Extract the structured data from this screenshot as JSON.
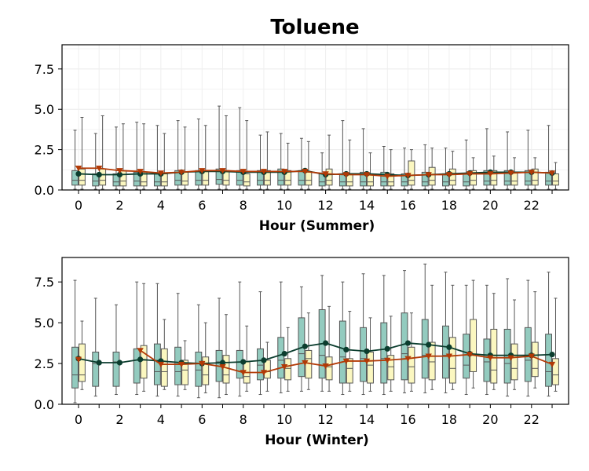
{
  "chart_title": "Toluene",
  "colors": {
    "box_a": "#93cbbf",
    "box_b": "#fbf7c0",
    "box_edge": "#555555",
    "line_a": "#0b3d2e",
    "line_b": "#b23a06"
  },
  "chart_data": [
    {
      "type": "box",
      "title": "Toluene",
      "xlabel": "Hour (Summer)",
      "ylabel": "",
      "ylim": [
        0,
        9
      ],
      "xticks": [
        "0",
        "2",
        "4",
        "6",
        "8",
        "10",
        "12",
        "14",
        "16",
        "18",
        "20",
        "22"
      ],
      "yticks": [
        "0.0",
        "2.5",
        "5.0",
        "7.5"
      ],
      "grid": true,
      "hours": [
        0,
        1,
        2,
        3,
        4,
        5,
        6,
        7,
        8,
        9,
        10,
        11,
        12,
        13,
        14,
        15,
        16,
        17,
        18,
        19,
        20,
        21,
        22,
        23
      ],
      "series": [
        {
          "marker": "circle",
          "color": "#0b3d2e",
          "box_color": "#93cbbf",
          "means": [
            1.0,
            0.95,
            0.95,
            1.0,
            1.0,
            1.1,
            1.15,
            1.15,
            1.1,
            1.1,
            1.1,
            1.2,
            0.95,
            1.0,
            1.0,
            0.95,
            0.9,
            0.95,
            1.0,
            1.05,
            1.1,
            1.1,
            1.1,
            1.05
          ],
          "boxes": [
            {
              "min": 0.05,
              "q1": 0.3,
              "median": 0.6,
              "q3": 1.2,
              "max": 3.7
            },
            {
              "min": 0.05,
              "q1": 0.25,
              "median": 0.55,
              "q3": 1.0,
              "max": 3.5
            },
            {
              "min": 0.05,
              "q1": 0.25,
              "median": 0.5,
              "q3": 1.0,
              "max": 3.9
            },
            {
              "min": 0.05,
              "q1": 0.25,
              "median": 0.55,
              "q3": 1.1,
              "max": 4.2
            },
            {
              "min": 0.05,
              "q1": 0.25,
              "median": 0.5,
              "q3": 1.0,
              "max": 4.0
            },
            {
              "min": 0.05,
              "q1": 0.3,
              "median": 0.6,
              "q3": 1.2,
              "max": 4.3
            },
            {
              "min": 0.05,
              "q1": 0.3,
              "median": 0.6,
              "q3": 1.2,
              "max": 4.4
            },
            {
              "min": 0.05,
              "q1": 0.35,
              "median": 0.65,
              "q3": 1.3,
              "max": 5.2
            },
            {
              "min": 0.05,
              "q1": 0.3,
              "median": 0.6,
              "q3": 1.2,
              "max": 5.1
            },
            {
              "min": 0.05,
              "q1": 0.3,
              "median": 0.6,
              "q3": 1.2,
              "max": 3.4
            },
            {
              "min": 0.05,
              "q1": 0.3,
              "median": 0.6,
              "q3": 1.3,
              "max": 3.5
            },
            {
              "min": 0.05,
              "q1": 0.3,
              "median": 0.6,
              "q3": 1.2,
              "max": 3.2
            },
            {
              "min": 0.05,
              "q1": 0.25,
              "median": 0.5,
              "q3": 1.0,
              "max": 2.3
            },
            {
              "min": 0.05,
              "q1": 0.25,
              "median": 0.5,
              "q3": 1.0,
              "max": 4.3
            },
            {
              "min": 0.05,
              "q1": 0.25,
              "median": 0.5,
              "q3": 1.1,
              "max": 3.8
            },
            {
              "min": 0.05,
              "q1": 0.25,
              "median": 0.5,
              "q3": 1.1,
              "max": 2.7
            },
            {
              "min": 0.05,
              "q1": 0.25,
              "median": 0.5,
              "q3": 1.0,
              "max": 2.6
            },
            {
              "min": 0.05,
              "q1": 0.25,
              "median": 0.5,
              "q3": 1.1,
              "max": 2.8
            },
            {
              "min": 0.05,
              "q1": 0.25,
              "median": 0.5,
              "q3": 1.0,
              "max": 2.6
            },
            {
              "min": 0.05,
              "q1": 0.25,
              "median": 0.5,
              "q3": 1.0,
              "max": 3.1
            },
            {
              "min": 0.05,
              "q1": 0.3,
              "median": 0.55,
              "q3": 1.2,
              "max": 3.8
            },
            {
              "min": 0.05,
              "q1": 0.3,
              "median": 0.55,
              "q3": 1.2,
              "max": 3.6
            },
            {
              "min": 0.05,
              "q1": 0.3,
              "median": 0.55,
              "q3": 1.2,
              "max": 3.7
            },
            {
              "min": 0.05,
              "q1": 0.3,
              "median": 0.55,
              "q3": 1.1,
              "max": 4.0
            }
          ]
        },
        {
          "marker": "triangle-down",
          "color": "#b23a06",
          "box_color": "#fbf7c0",
          "means": [
            1.35,
            1.35,
            1.2,
            1.15,
            1.05,
            1.1,
            1.2,
            1.2,
            1.15,
            1.15,
            1.15,
            1.15,
            1.0,
            0.95,
            0.95,
            0.85,
            0.9,
            0.95,
            0.95,
            1.0,
            1.0,
            1.05,
            1.1,
            1.05
          ],
          "boxes": [
            {
              "min": 0.05,
              "q1": 0.3,
              "median": 0.6,
              "q3": 1.3,
              "max": 4.5
            },
            {
              "min": 0.05,
              "q1": 0.3,
              "median": 0.6,
              "q3": 1.3,
              "max": 4.6
            },
            {
              "min": 0.05,
              "q1": 0.25,
              "median": 0.55,
              "q3": 1.2,
              "max": 4.1
            },
            {
              "min": 0.05,
              "q1": 0.25,
              "median": 0.5,
              "q3": 1.1,
              "max": 4.1
            },
            {
              "min": 0.05,
              "q1": 0.25,
              "median": 0.5,
              "q3": 1.0,
              "max": 3.5
            },
            {
              "min": 0.05,
              "q1": 0.3,
              "median": 0.55,
              "q3": 1.1,
              "max": 3.9
            },
            {
              "min": 0.05,
              "q1": 0.3,
              "median": 0.6,
              "q3": 1.2,
              "max": 4.0
            },
            {
              "min": 0.05,
              "q1": 0.3,
              "median": 0.6,
              "q3": 1.2,
              "max": 4.6
            },
            {
              "min": 0.05,
              "q1": 0.25,
              "median": 0.5,
              "q3": 1.0,
              "max": 4.3
            },
            {
              "min": 0.05,
              "q1": 0.3,
              "median": 0.6,
              "q3": 1.2,
              "max": 3.6
            },
            {
              "min": 0.05,
              "q1": 0.3,
              "median": 0.6,
              "q3": 1.2,
              "max": 2.9
            },
            {
              "min": 0.05,
              "q1": 0.3,
              "median": 0.6,
              "q3": 1.1,
              "max": 3.0
            },
            {
              "min": 0.05,
              "q1": 0.3,
              "median": 0.6,
              "q3": 1.3,
              "max": 3.4
            },
            {
              "min": 0.05,
              "q1": 0.25,
              "median": 0.5,
              "q3": 1.0,
              "max": 3.1
            },
            {
              "min": 0.05,
              "q1": 0.25,
              "median": 0.5,
              "q3": 1.0,
              "max": 2.3
            },
            {
              "min": 0.05,
              "q1": 0.25,
              "median": 0.5,
              "q3": 1.0,
              "max": 2.5
            },
            {
              "min": 0.05,
              "q1": 0.3,
              "median": 0.6,
              "q3": 1.8,
              "max": 2.5
            },
            {
              "min": 0.05,
              "q1": 0.3,
              "median": 0.6,
              "q3": 1.4,
              "max": 2.6
            },
            {
              "min": 0.05,
              "q1": 0.3,
              "median": 0.6,
              "q3": 1.3,
              "max": 2.4
            },
            {
              "min": 0.05,
              "q1": 0.3,
              "median": 0.6,
              "q3": 1.2,
              "max": 2.0
            },
            {
              "min": 0.05,
              "q1": 0.3,
              "median": 0.6,
              "q3": 1.2,
              "max": 2.1
            },
            {
              "min": 0.05,
              "q1": 0.3,
              "median": 0.55,
              "q3": 1.1,
              "max": 2.0
            },
            {
              "min": 0.05,
              "q1": 0.3,
              "median": 0.6,
              "q3": 1.3,
              "max": 2.0
            },
            {
              "min": 0.05,
              "q1": 0.3,
              "median": 0.55,
              "q3": 1.0,
              "max": 1.7
            }
          ]
        }
      ]
    },
    {
      "type": "box",
      "xlabel": "Hour (Winter)",
      "ylabel": "",
      "ylim": [
        0,
        9
      ],
      "xticks": [
        "0",
        "2",
        "4",
        "6",
        "8",
        "10",
        "12",
        "14",
        "16",
        "18",
        "20",
        "22"
      ],
      "yticks": [
        "0.0",
        "2.5",
        "5.0",
        "7.5"
      ],
      "grid": false,
      "hours": [
        0,
        1,
        2,
        3,
        4,
        5,
        6,
        7,
        8,
        9,
        10,
        11,
        12,
        13,
        14,
        15,
        16,
        17,
        18,
        19,
        20,
        21,
        22,
        23
      ],
      "series": [
        {
          "marker": "circle",
          "color": "#0b3d2e",
          "box_color": "#93cbbf",
          "means": [
            2.8,
            2.55,
            2.55,
            2.75,
            2.65,
            2.55,
            2.5,
            2.55,
            2.6,
            2.7,
            3.1,
            3.55,
            3.75,
            3.35,
            3.25,
            3.4,
            3.75,
            3.65,
            3.5,
            3.1,
            3.0,
            3.0,
            3.0,
            3.05
          ],
          "boxes": [
            {
              "min": 0.1,
              "q1": 1.0,
              "median": 1.8,
              "q3": 3.5,
              "max": 7.6
            },
            {
              "min": 0.5,
              "q1": 1.1,
              "median": 2.5,
              "q3": 3.2,
              "max": 6.5
            },
            {
              "min": 0.6,
              "q1": 1.1,
              "median": 2.6,
              "q3": 3.2,
              "max": 6.1
            },
            {
              "min": 0.6,
              "q1": 1.3,
              "median": 2.7,
              "q3": 3.4,
              "max": 7.5
            },
            {
              "min": 0.5,
              "q1": 1.2,
              "median": 2.0,
              "q3": 3.7,
              "max": 7.4
            },
            {
              "min": 0.5,
              "q1": 1.2,
              "median": 2.0,
              "q3": 3.5,
              "max": 6.8
            },
            {
              "min": 0.4,
              "q1": 1.1,
              "median": 2.1,
              "q3": 3.2,
              "max": 6.1
            },
            {
              "min": 0.4,
              "q1": 1.4,
              "median": 2.6,
              "q3": 3.3,
              "max": 6.5
            },
            {
              "min": 0.5,
              "q1": 1.6,
              "median": 2.6,
              "q3": 3.3,
              "max": 7.5
            },
            {
              "min": 0.6,
              "q1": 1.5,
              "median": 2.4,
              "q3": 3.4,
              "max": 6.9
            },
            {
              "min": 0.7,
              "q1": 1.6,
              "median": 2.7,
              "q3": 4.1,
              "max": 7.5
            },
            {
              "min": 0.8,
              "q1": 1.7,
              "median": 3.1,
              "q3": 5.3,
              "max": 7.2
            },
            {
              "min": 0.8,
              "q1": 1.6,
              "median": 3.0,
              "q3": 5.8,
              "max": 7.9
            },
            {
              "min": 0.6,
              "q1": 1.3,
              "median": 2.9,
              "q3": 5.1,
              "max": 7.5
            },
            {
              "min": 0.6,
              "q1": 1.4,
              "median": 2.8,
              "q3": 4.7,
              "max": 8.0
            },
            {
              "min": 0.6,
              "q1": 1.3,
              "median": 2.8,
              "q3": 5.0,
              "max": 7.9
            },
            {
              "min": 0.7,
              "q1": 1.5,
              "median": 3.1,
              "q3": 5.6,
              "max": 8.2
            },
            {
              "min": 0.7,
              "q1": 1.6,
              "median": 3.0,
              "q3": 5.2,
              "max": 8.6
            },
            {
              "min": 0.7,
              "q1": 1.6,
              "median": 3.0,
              "q3": 4.8,
              "max": 8.1
            },
            {
              "min": 0.6,
              "q1": 1.6,
              "median": 2.4,
              "q3": 4.3,
              "max": 7.3
            },
            {
              "min": 0.6,
              "q1": 1.4,
              "median": 2.6,
              "q3": 4.0,
              "max": 7.3
            },
            {
              "min": 0.5,
              "q1": 1.3,
              "median": 2.5,
              "q3": 4.6,
              "max": 7.7
            },
            {
              "min": 0.5,
              "q1": 1.4,
              "median": 2.7,
              "q3": 4.7,
              "max": 7.6
            },
            {
              "min": 0.5,
              "q1": 1.1,
              "median": 2.0,
              "q3": 4.3,
              "max": 8.1
            }
          ]
        },
        {
          "marker": "triangle-down",
          "color": "#b23a06",
          "box_color": "#fbf7c0",
          "means": [
            2.75,
            null,
            null,
            3.3,
            2.45,
            2.45,
            2.5,
            2.3,
            1.95,
            1.95,
            2.3,
            2.55,
            2.35,
            2.65,
            2.65,
            2.7,
            2.8,
            2.95,
            2.95,
            3.05,
            2.85,
            2.85,
            2.95,
            2.45
          ],
          "boxes": [
            {
              "min": 0.9,
              "q1": 1.4,
              "median": 1.8,
              "q3": 3.7,
              "max": 5.1
            },
            null,
            null,
            {
              "min": 0.8,
              "q1": 1.6,
              "median": 2.7,
              "q3": 3.6,
              "max": 7.4
            },
            {
              "min": 0.9,
              "q1": 1.1,
              "median": 2.0,
              "q3": 3.4,
              "max": 5.2
            },
            {
              "min": 0.9,
              "q1": 1.2,
              "median": 2.1,
              "q3": 2.7,
              "max": 3.9
            },
            {
              "min": 0.7,
              "q1": 1.2,
              "median": 1.8,
              "q3": 2.9,
              "max": 5.0
            },
            {
              "min": 0.6,
              "q1": 1.3,
              "median": 1.8,
              "q3": 3.0,
              "max": 5.5
            },
            {
              "min": 0.8,
              "q1": 1.3,
              "median": 1.7,
              "q3": 2.6,
              "max": 4.8
            },
            {
              "min": 0.8,
              "q1": 1.6,
              "median": 2.0,
              "q3": 2.7,
              "max": 3.8
            },
            {
              "min": 0.8,
              "q1": 1.5,
              "median": 2.2,
              "q3": 2.8,
              "max": 4.7
            },
            {
              "min": 0.9,
              "q1": 1.6,
              "median": 2.8,
              "q3": 3.3,
              "max": 5.6
            },
            {
              "min": 0.8,
              "q1": 1.5,
              "median": 2.3,
              "q3": 2.9,
              "max": 6.0
            },
            {
              "min": 0.8,
              "q1": 1.3,
              "median": 2.2,
              "q3": 2.8,
              "max": 5.7
            },
            {
              "min": 0.8,
              "q1": 1.3,
              "median": 2.4,
              "q3": 3.2,
              "max": 5.3
            },
            {
              "min": 0.8,
              "q1": 1.5,
              "median": 2.3,
              "q3": 3.0,
              "max": 5.4
            },
            {
              "min": 0.8,
              "q1": 1.3,
              "median": 2.3,
              "q3": 3.5,
              "max": 5.6
            },
            {
              "min": 0.9,
              "q1": 1.5,
              "median": 2.6,
              "q3": 3.8,
              "max": 7.3
            },
            {
              "min": 0.9,
              "q1": 1.3,
              "median": 2.2,
              "q3": 4.1,
              "max": 7.3
            },
            {
              "min": 1.0,
              "q1": 2.0,
              "median": 3.0,
              "q3": 5.2,
              "max": 7.6
            },
            {
              "min": 0.9,
              "q1": 1.3,
              "median": 2.1,
              "q3": 4.6,
              "max": 6.8
            },
            {
              "min": 0.9,
              "q1": 1.5,
              "median": 2.2,
              "q3": 3.7,
              "max": 6.4
            },
            {
              "min": 1.0,
              "q1": 1.7,
              "median": 2.2,
              "q3": 3.8,
              "max": 6.9
            },
            {
              "min": 0.8,
              "q1": 1.2,
              "median": 1.8,
              "q3": 2.8,
              "max": 6.5
            }
          ]
        }
      ]
    }
  ]
}
